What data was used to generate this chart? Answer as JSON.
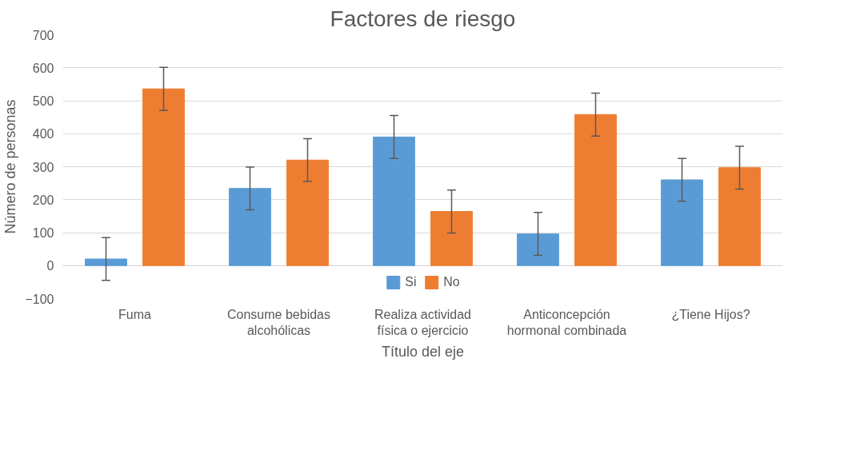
{
  "chart_data": {
    "type": "bar",
    "title": "Factores de riesgo",
    "xlabel": "Título del eje",
    "ylabel": "Número de personas",
    "categories": [
      "Fuma",
      "Consume bebidas alcohólicas",
      "Realiza actividad física o ejercicio",
      "Anticoncepción hormonal combinada",
      "¿Tiene Hijos?"
    ],
    "series": [
      {
        "name": "Si",
        "color": "#5b9bd5",
        "values": [
          20,
          234,
          390,
          96,
          260
        ],
        "errors": [
          65,
          65,
          65,
          65,
          65
        ]
      },
      {
        "name": "No",
        "color": "#ed7d31",
        "values": [
          536,
          320,
          164,
          458,
          297
        ],
        "errors": [
          65,
          65,
          65,
          65,
          65
        ]
      }
    ],
    "ylim": [
      -100,
      700
    ],
    "yticks": [
      -100,
      0,
      100,
      200,
      300,
      400,
      500,
      600,
      700
    ],
    "grid": "y",
    "legend": "bottom"
  }
}
